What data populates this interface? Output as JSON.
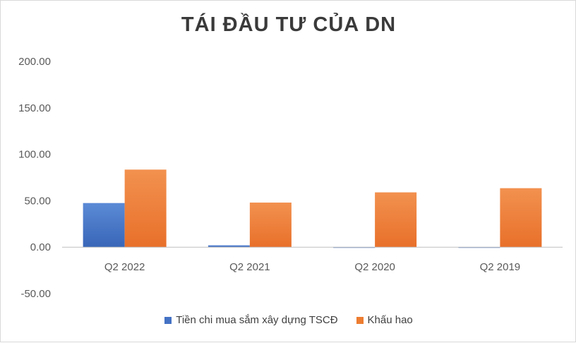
{
  "chart_data": {
    "type": "bar",
    "title": "TÁI ĐẦU TƯ CỦA DN",
    "categories": [
      "Q2 2022",
      "Q2 2021",
      "Q2 2020",
      "Q2 2019"
    ],
    "series": [
      {
        "name": "Tiền chi mua sắm xây dựng TSCĐ",
        "color": "#4472c4",
        "values": [
          47.5,
          2.0,
          -0.5,
          -0.3
        ]
      },
      {
        "name": "Khấu hao",
        "color": "#ed7d31",
        "values": [
          83.5,
          48.0,
          59.0,
          63.5
        ]
      }
    ],
    "ylim": [
      -50,
      200
    ],
    "yticks": [
      "200.00",
      "150.00",
      "100.00",
      "50.00",
      "0.00",
      "-50.00"
    ],
    "xlabel": "",
    "ylabel": "",
    "legend_position": "bottom",
    "gridlines": false
  }
}
